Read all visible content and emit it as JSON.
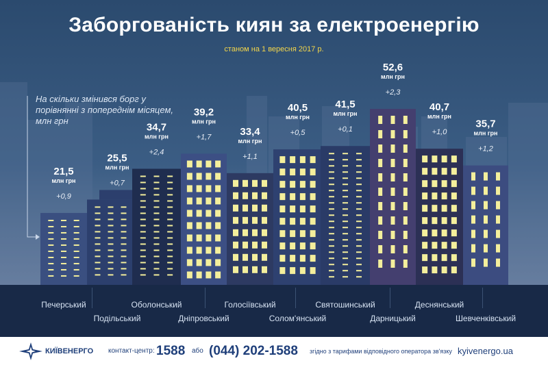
{
  "title": "Заборгованість киян за електроенергію",
  "subtitle": "станом на 1 вересня 2017 р.",
  "note": "На скільки змінився борг у порівнянні з попереднім місяцем, млн грн",
  "unit": "млн грн",
  "colors": {
    "sky_top": "#2b4a6e",
    "strip": "#182947",
    "window_yellow": "#f4ef9c",
    "value_text": "#ffffff",
    "change_text": "#e9eef6",
    "footer_blue": "#1f3f7a"
  },
  "chart_data": {
    "type": "bar",
    "title": "Заборгованість киян за електроенергію",
    "subtitle": "станом на 1 вересня 2017 р.",
    "unit": "млн грн",
    "categories": [
      "Печерський",
      "Подільський",
      "Оболонський",
      "Дніпровський",
      "Голосіївський",
      "Солом'янський",
      "Святошинський",
      "Дарницький",
      "Деснянський",
      "Шевченківський"
    ],
    "values": [
      21.5,
      25.5,
      34.7,
      39.2,
      33.4,
      40.5,
      41.5,
      52.6,
      40.7,
      35.7
    ],
    "value_labels": [
      "21,5",
      "25,5",
      "34,7",
      "39,2",
      "33,4",
      "40,5",
      "41,5",
      "52,6",
      "40,7",
      "35,7"
    ],
    "change": [
      0.9,
      0.7,
      2.4,
      1.7,
      1.1,
      0.5,
      0.1,
      2.3,
      1.0,
      1.2
    ],
    "change_labels": [
      "+0,9",
      "+0,7",
      "+2,4",
      "+1,7",
      "+1,1",
      "+0,5",
      "+0,1",
      "+2,3",
      "+1,0",
      "+1,2"
    ],
    "ylim": [
      0,
      52.6
    ]
  },
  "footer": {
    "brand": "КИЇВЕНЕРГО",
    "contact_label": "контакт-центр:",
    "short_number": "1588",
    "or_text": "або",
    "full_number": "(044) 202-1588",
    "tariff_note": "згідно з тарифами відповідного оператора зв'язку",
    "website": "kyivenergo.ua"
  }
}
